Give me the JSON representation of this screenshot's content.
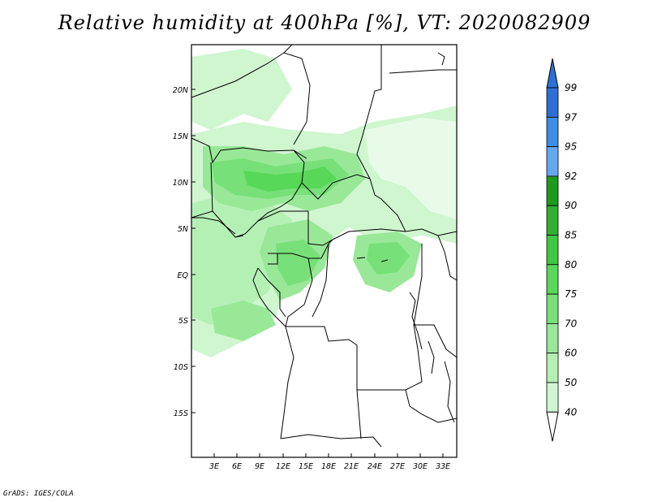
{
  "title": "Relative humidity at 400hPa [%], VT: 2020082909",
  "credit": "GrADS: IGES/COLA",
  "map": {
    "lat_ticks": [
      "20N",
      "15N",
      "10N",
      "5N",
      "EQ",
      "5S",
      "10S",
      "15S"
    ],
    "lon_ticks": [
      "3E",
      "6E",
      "9E",
      "12E",
      "15E",
      "18E",
      "21E",
      "24E",
      "27E",
      "30E",
      "33E"
    ]
  },
  "colorbar": {
    "levels": [
      "99",
      "97",
      "95",
      "92",
      "90",
      "85",
      "80",
      "75",
      "70",
      "60",
      "50",
      "40"
    ],
    "colors": [
      "#2d6fd6",
      "#3f8ee6",
      "#64a8f0",
      "#1e9a1e",
      "#2fb12f",
      "#41c841",
      "#58d858",
      "#78e078",
      "#98e898",
      "#b4f0b4",
      "#cff6cf",
      "#e8fbe8"
    ]
  }
}
